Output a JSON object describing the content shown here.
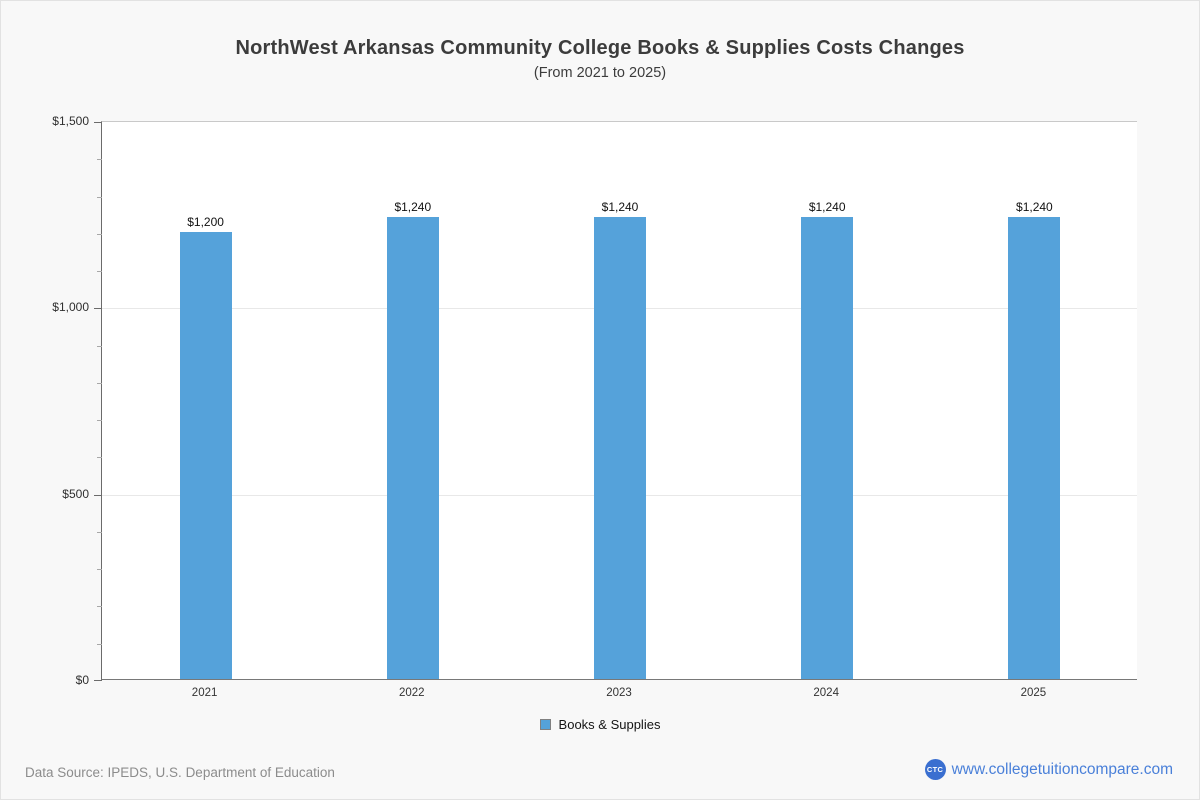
{
  "title": "NorthWest Arkansas Community College Books & Supplies Costs Changes",
  "subtitle": "(From 2021 to 2025)",
  "chart_data": {
    "type": "bar",
    "categories": [
      "2021",
      "2022",
      "2023",
      "2024",
      "2025"
    ],
    "series": [
      {
        "name": "Books & Supplies",
        "values": [
          1200,
          1240,
          1240,
          1240,
          1240
        ]
      }
    ],
    "value_labels": [
      "$1,200",
      "$1,240",
      "$1,240",
      "$1,240",
      "$1,240"
    ],
    "title": "NorthWest Arkansas Community College Books & Supplies Costs Changes",
    "subtitle": "(From 2021 to 2025)",
    "xlabel": "",
    "ylabel": "",
    "ylim": [
      0,
      1500
    ],
    "y_major_ticks": [
      0,
      500,
      1000,
      1500
    ],
    "y_tick_labels": [
      "$0",
      "$500",
      "$1,000",
      "$1,500"
    ],
    "y_minor_tick_interval": 100,
    "grid": true,
    "legend_position": "bottom",
    "bar_color": "#55a2da",
    "legend_border_color": "#808080"
  },
  "legend": {
    "label": "Books & Supplies"
  },
  "footer": {
    "data_source": "Data Source: IPEDS, U.S. Department of Education",
    "logo_text": "CTC",
    "website": "www.collegetuitioncompare.com",
    "brand_color": "#3a6fd0",
    "link_color": "#4a80d9"
  }
}
